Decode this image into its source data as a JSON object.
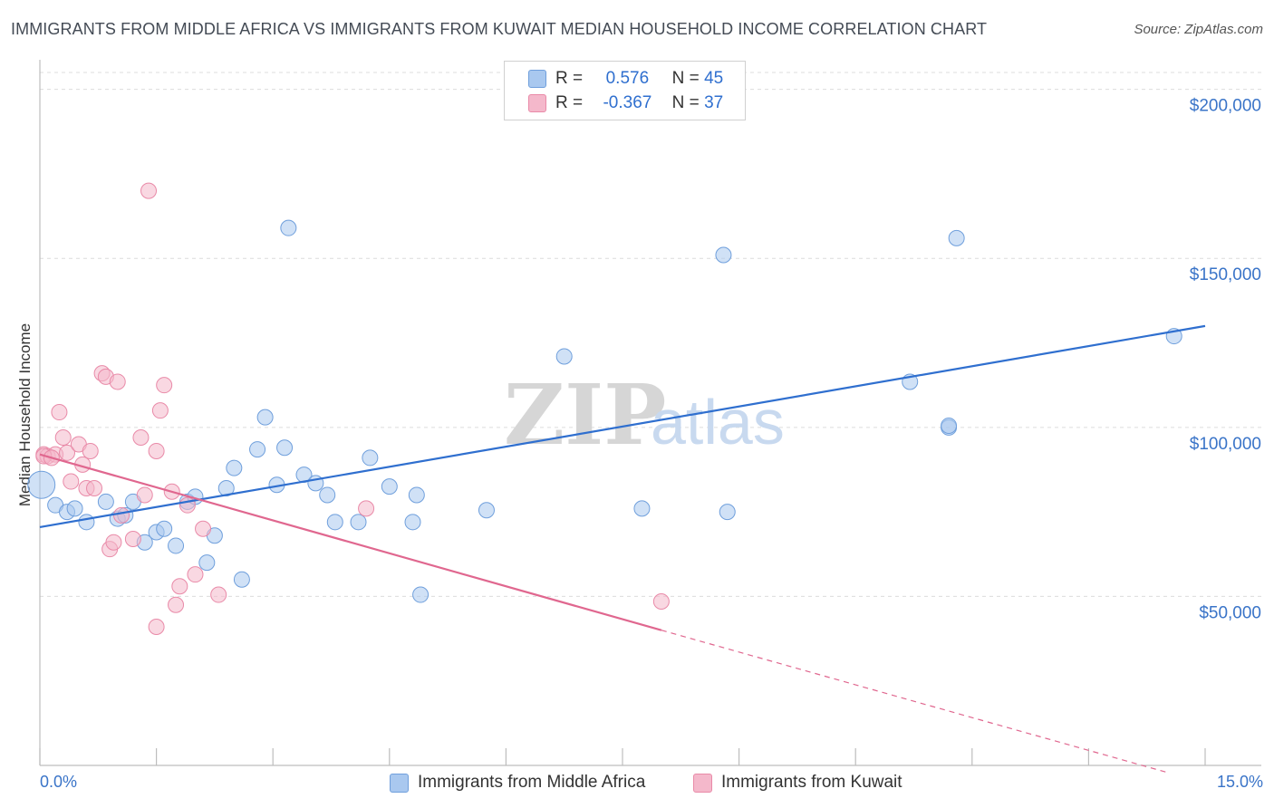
{
  "title": "IMMIGRANTS FROM MIDDLE AFRICA VS IMMIGRANTS FROM KUWAIT MEDIAN HOUSEHOLD INCOME CORRELATION CHART",
  "source": "Source: ZipAtlas.com",
  "watermark": {
    "zip": "ZIP",
    "atlas": "atlas"
  },
  "legend": {
    "r_label": "R =",
    "n_label": "N =",
    "rows": [
      {
        "r": "0.576",
        "n": "45",
        "color": "#a9c8ef"
      },
      {
        "r": "-0.367",
        "n": "37",
        "color": "#f4b8cb"
      }
    ]
  },
  "chart_data": {
    "type": "scatter",
    "ylabel": "Median Household Income",
    "xlim": [
      0,
      15
    ],
    "ylim": [
      0,
      205000
    ],
    "x_tick_labels": [
      "0.0%",
      "15.0%"
    ],
    "y_ticks": [
      {
        "value": 50000,
        "label": "$50,000"
      },
      {
        "value": 100000,
        "label": "$100,000"
      },
      {
        "value": 150000,
        "label": "$150,000"
      },
      {
        "value": 200000,
        "label": "$200,000"
      }
    ],
    "grid": true,
    "legend_placement": "top-center",
    "series": [
      {
        "name": "Immigrants from Middle Africa",
        "color": "#a9c8ef",
        "stroke": "#6f9fdc",
        "line_color": "#2f6fcf",
        "trend": {
          "x": [
            0.0,
            15.0
          ],
          "y": [
            70500,
            130000
          ]
        },
        "points": [
          [
            0.02,
            83000
          ],
          [
            0.2,
            77000
          ],
          [
            0.35,
            75000
          ],
          [
            0.45,
            76000
          ],
          [
            0.6,
            72000
          ],
          [
            0.85,
            78000
          ],
          [
            1.0,
            73000
          ],
          [
            1.1,
            74000
          ],
          [
            1.2,
            78000
          ],
          [
            1.35,
            66000
          ],
          [
            1.5,
            69000
          ],
          [
            1.6,
            70000
          ],
          [
            1.75,
            65000
          ],
          [
            1.9,
            78000
          ],
          [
            2.0,
            79500
          ],
          [
            2.15,
            60000
          ],
          [
            2.25,
            68000
          ],
          [
            2.4,
            82000
          ],
          [
            2.5,
            88000
          ],
          [
            2.6,
            55000
          ],
          [
            2.8,
            93500
          ],
          [
            2.9,
            103000
          ],
          [
            3.05,
            83000
          ],
          [
            3.15,
            94000
          ],
          [
            3.2,
            159000
          ],
          [
            3.4,
            86000
          ],
          [
            3.55,
            83500
          ],
          [
            3.7,
            80000
          ],
          [
            3.8,
            72000
          ],
          [
            4.1,
            72000
          ],
          [
            4.25,
            91000
          ],
          [
            4.5,
            82500
          ],
          [
            4.8,
            72000
          ],
          [
            4.85,
            80000
          ],
          [
            4.9,
            50500
          ],
          [
            5.75,
            75500
          ],
          [
            6.75,
            121000
          ],
          [
            7.75,
            76000
          ],
          [
            8.8,
            151000
          ],
          [
            8.85,
            75000
          ],
          [
            11.2,
            113500
          ],
          [
            11.7,
            100000
          ],
          [
            11.7,
            100500
          ],
          [
            11.8,
            156000
          ],
          [
            14.6,
            127000
          ]
        ]
      },
      {
        "name": "Immigrants from Kuwait",
        "color": "#f4b8cb",
        "stroke": "#e98aa8",
        "line_color": "#e0678f",
        "trend": {
          "x": [
            0.0,
            8.0
          ],
          "y": [
            92000,
            40000
          ]
        },
        "trend_dashed": {
          "x": [
            8.0,
            14.5
          ],
          "y": [
            40000,
            -2000
          ]
        },
        "points": [
          [
            0.05,
            92000
          ],
          [
            0.1,
            91500
          ],
          [
            0.2,
            92000
          ],
          [
            0.25,
            104500
          ],
          [
            0.3,
            97000
          ],
          [
            0.35,
            92500
          ],
          [
            0.4,
            84000
          ],
          [
            0.5,
            95000
          ],
          [
            0.55,
            89000
          ],
          [
            0.6,
            82000
          ],
          [
            0.65,
            93000
          ],
          [
            0.7,
            82000
          ],
          [
            0.8,
            116000
          ],
          [
            0.85,
            115000
          ],
          [
            0.9,
            64000
          ],
          [
            0.95,
            66000
          ],
          [
            1.0,
            113500
          ],
          [
            1.05,
            74000
          ],
          [
            1.2,
            67000
          ],
          [
            1.3,
            97000
          ],
          [
            1.35,
            80000
          ],
          [
            1.4,
            170000
          ],
          [
            1.5,
            93000
          ],
          [
            1.5,
            41000
          ],
          [
            1.55,
            105000
          ],
          [
            1.6,
            112500
          ],
          [
            1.7,
            81000
          ],
          [
            1.75,
            47500
          ],
          [
            1.8,
            53000
          ],
          [
            1.9,
            77000
          ],
          [
            2.0,
            56500
          ],
          [
            2.1,
            70000
          ],
          [
            2.3,
            50500
          ],
          [
            4.2,
            76000
          ],
          [
            8.0,
            48500
          ],
          [
            0.05,
            91500
          ],
          [
            0.15,
            91000
          ]
        ]
      }
    ]
  }
}
